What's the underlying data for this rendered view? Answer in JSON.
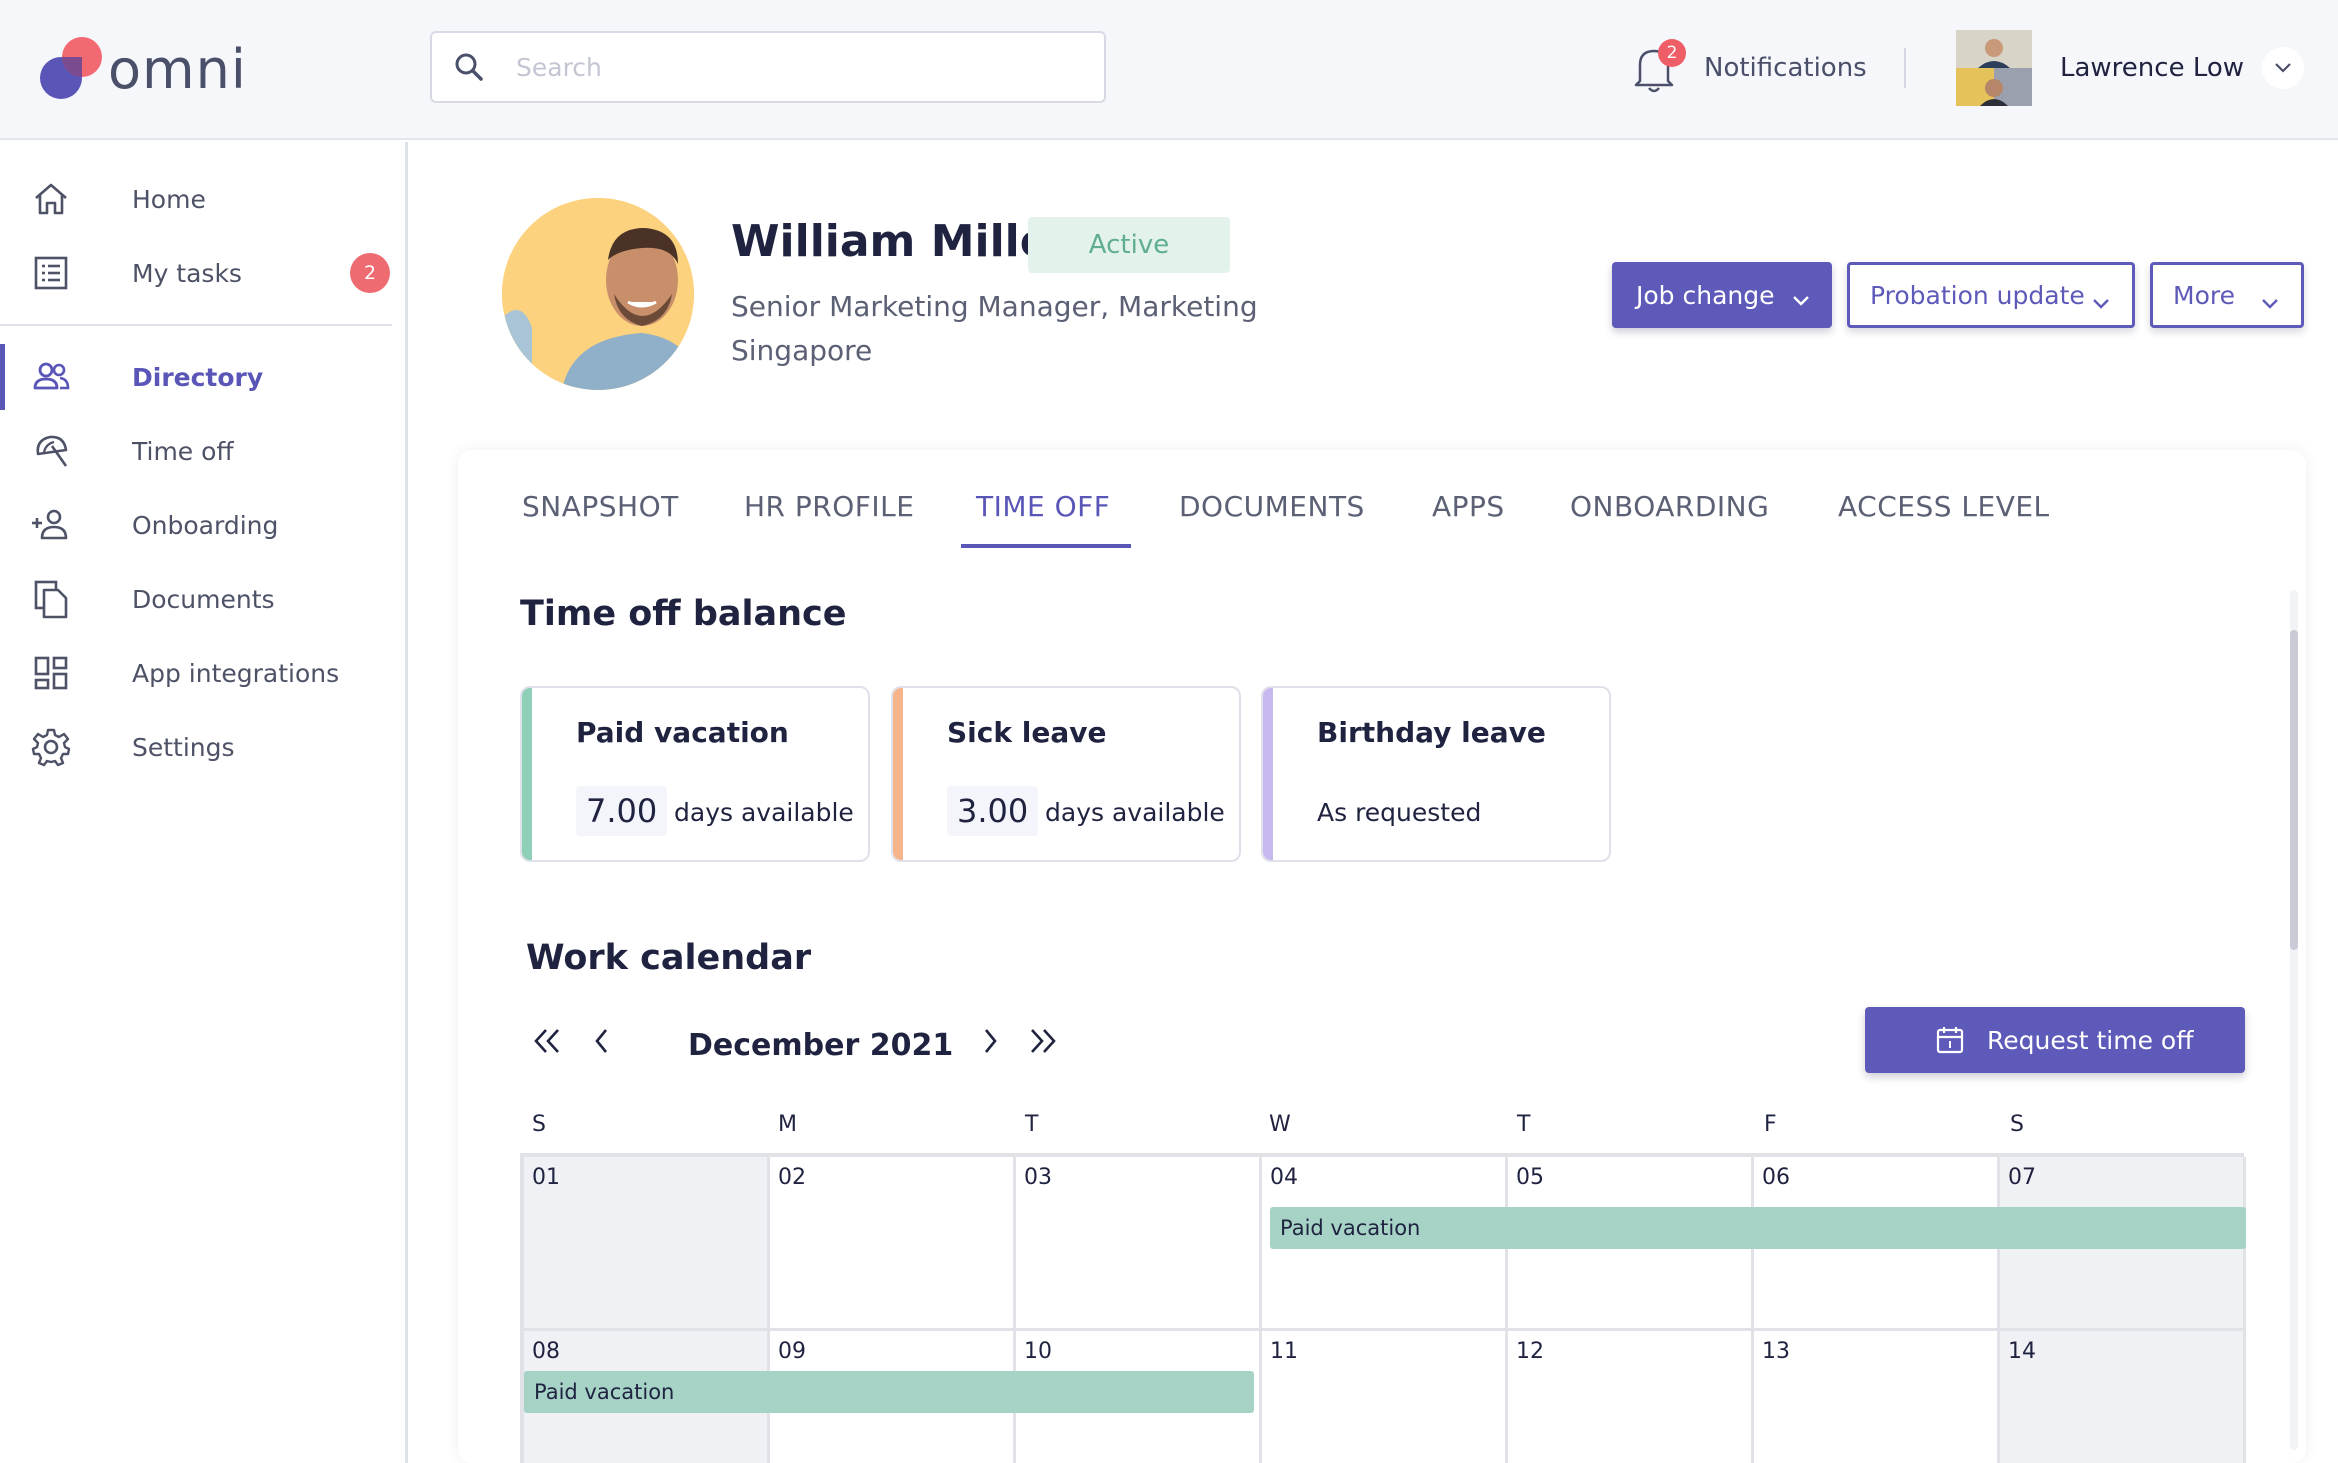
{
  "brand": {
    "name": "omni",
    "accent": "#5e5ab9",
    "logo_red": "#f2616a"
  },
  "search": {
    "placeholder": "Search"
  },
  "header": {
    "notifications_label": "Notifications",
    "notifications_count": "2",
    "user_name": "Lawrence Low"
  },
  "sidebar": {
    "items": [
      {
        "label": "Home",
        "icon": "home-icon"
      },
      {
        "label": "My tasks",
        "icon": "tasks-icon",
        "badge": "2"
      },
      {
        "label": "Directory",
        "icon": "people-icon",
        "active": true
      },
      {
        "label": "Time off",
        "icon": "umbrella-icon"
      },
      {
        "label": "Onboarding",
        "icon": "add-person-icon"
      },
      {
        "label": "Documents",
        "icon": "documents-icon"
      },
      {
        "label": "App integrations",
        "icon": "grid-icon"
      },
      {
        "label": "Settings",
        "icon": "gear-icon"
      }
    ]
  },
  "profile": {
    "name": "William Miller",
    "status": "Active",
    "title": "Senior Marketing Manager, Marketing",
    "location": "Singapore"
  },
  "actions": {
    "job_change": "Job change",
    "probation_update": "Probation update",
    "more": "More"
  },
  "tabs": [
    "SNAPSHOT",
    "HR PROFILE",
    "TIME OFF",
    "DOCUMENTS",
    "APPS",
    "ONBOARDING",
    "ACCESS LEVEL"
  ],
  "active_tab": "TIME OFF",
  "time_off_balance": {
    "title": "Time off balance",
    "cards": [
      {
        "title": "Paid vacation",
        "amount": "7.00",
        "unit": "days available",
        "color": "#8ecfb8"
      },
      {
        "title": "Sick leave",
        "amount": "3.00",
        "unit": "days available",
        "color": "#f6b48a"
      },
      {
        "title": "Birthday leave",
        "text": "As requested",
        "color": "#c7b8ef"
      }
    ]
  },
  "calendar": {
    "title": "Work calendar",
    "month": "December 2021",
    "request_button": "Request time off",
    "weekdays": [
      "S",
      "M",
      "T",
      "W",
      "T",
      "F",
      "S"
    ],
    "weeks": [
      [
        "01",
        "02",
        "03",
        "04",
        "05",
        "06",
        "07"
      ],
      [
        "08",
        "09",
        "10",
        "11",
        "12",
        "13",
        "14"
      ]
    ],
    "events": [
      {
        "label": "Paid vacation",
        "week": 0,
        "start_day": 3,
        "end_day": 6
      },
      {
        "label": "Paid vacation",
        "week": 1,
        "start_day": 0,
        "end_day": 2
      }
    ]
  }
}
